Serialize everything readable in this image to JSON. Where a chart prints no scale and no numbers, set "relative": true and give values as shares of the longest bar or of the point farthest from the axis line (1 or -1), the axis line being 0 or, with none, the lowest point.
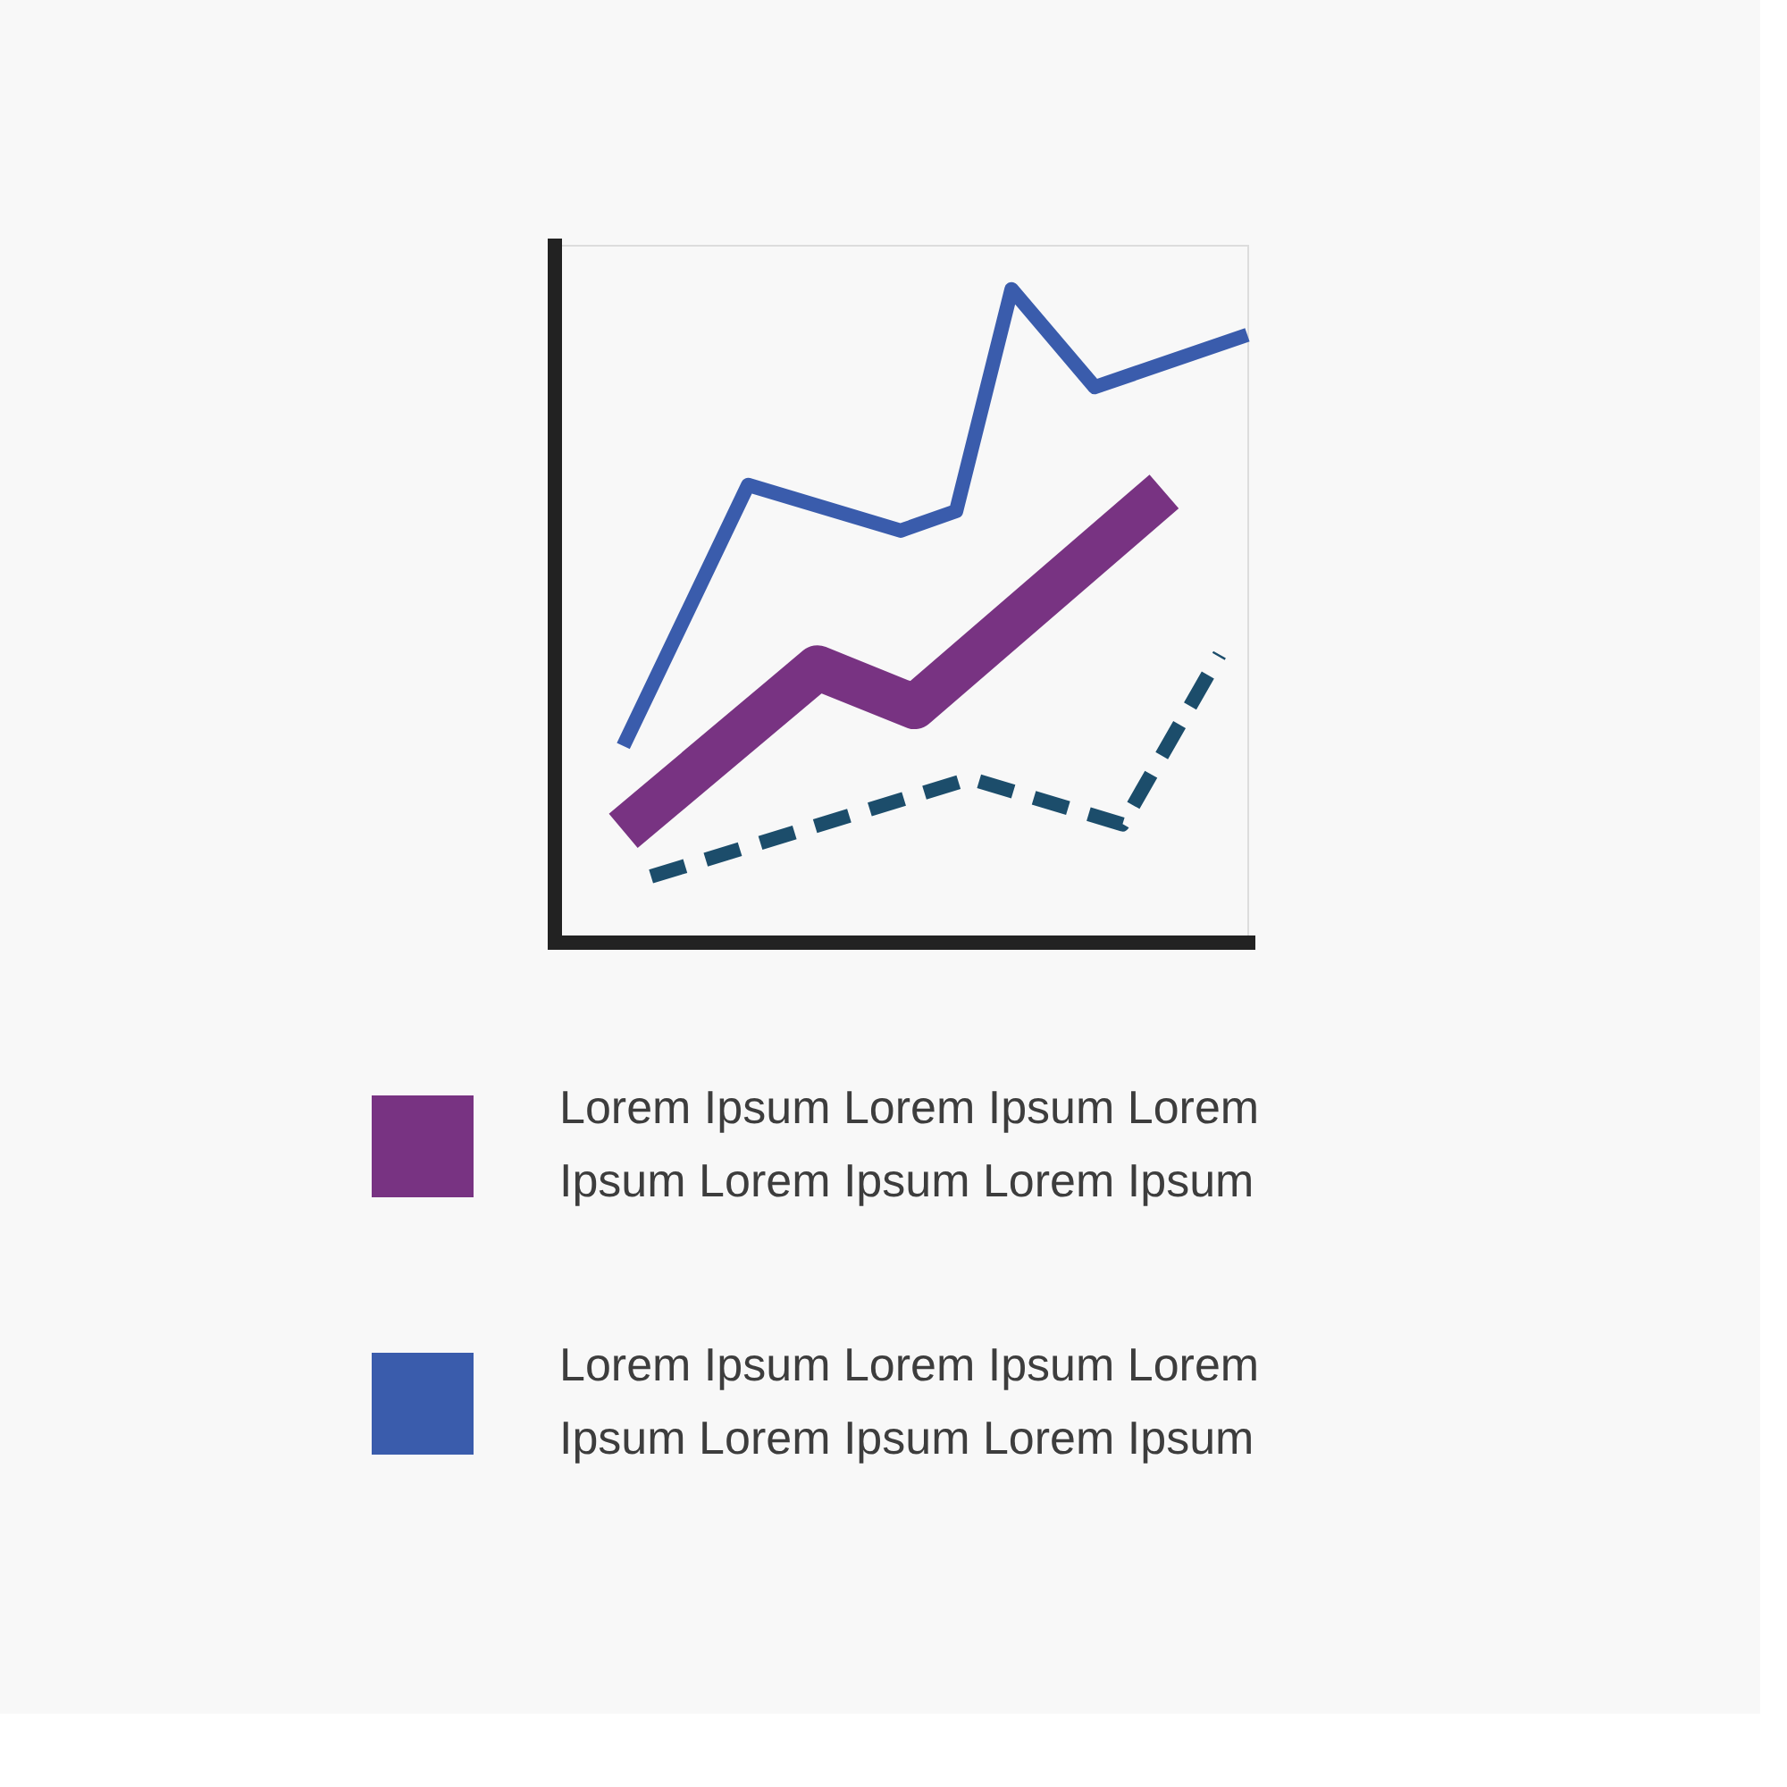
{
  "chart_data": {
    "type": "line",
    "relative": true,
    "legend": "bottom",
    "categories": [
      null,
      null,
      null,
      null,
      null,
      null,
      null,
      null,
      null,
      null,
      null,
      null,
      null,
      null,
      null,
      null,
      null,
      null,
      null,
      null,
      null,
      null,
      null,
      null,
      null,
      null,
      null,
      null,
      null,
      null,
      null,
      null,
      null,
      null,
      null,
      null,
      null,
      null,
      null,
      null,
      null,
      null,
      null,
      null,
      null,
      null,
      null,
      null,
      null,
      null,
      null
    ],
    "series": [
      {
        "name": "Lorem Ipsum Lorem Ipsum Lorem Ipsum Lorem Ipsum Lorem Ipsum",
        "color": "#783382",
        "values": [
          null,
          null,
          null,
          null,
          null,
          0.17,
          null,
          null,
          null,
          null,
          null,
          null,
          null,
          null,
          null,
          null,
          null,
          null,
          null,
          0.42,
          null,
          null,
          null,
          null,
          null,
          null,
          0.36,
          null,
          null,
          null,
          null,
          null,
          null,
          null,
          null,
          null,
          null,
          null,
          null,
          null,
          null,
          null,
          null,
          null,
          0.69,
          null,
          null,
          null,
          null,
          null,
          null
        ]
      },
      {
        "name": "Lorem Ipsum Lorem Ipsum Lorem Ipsum Lorem Ipsum Lorem Ipsum",
        "color": "#3a5cac",
        "values": [
          null,
          null,
          null,
          null,
          null,
          0.3,
          null,
          null,
          null,
          null,
          null,
          null,
          null,
          null,
          0.7,
          null,
          null,
          null,
          null,
          null,
          null,
          null,
          null,
          null,
          null,
          0.63,
          null,
          null,
          null,
          0.66,
          null,
          null,
          null,
          1.0,
          null,
          null,
          null,
          null,
          null,
          0.85,
          null,
          null,
          null,
          null,
          null,
          null,
          null,
          null,
          null,
          null,
          0.93
        ]
      },
      {
        "color": "#1c4d6b",
        "line_style": "dashed",
        "values": [
          null,
          null,
          null,
          null,
          null,
          null,
          null,
          0.1,
          null,
          null,
          null,
          null,
          null,
          null,
          null,
          null,
          null,
          null,
          null,
          null,
          null,
          null,
          null,
          null,
          null,
          null,
          null,
          null,
          null,
          null,
          0.25,
          null,
          null,
          null,
          null,
          null,
          null,
          null,
          null,
          null,
          null,
          0.18,
          null,
          null,
          null,
          null,
          null,
          null,
          0.44,
          null,
          null
        ]
      }
    ]
  }
}
